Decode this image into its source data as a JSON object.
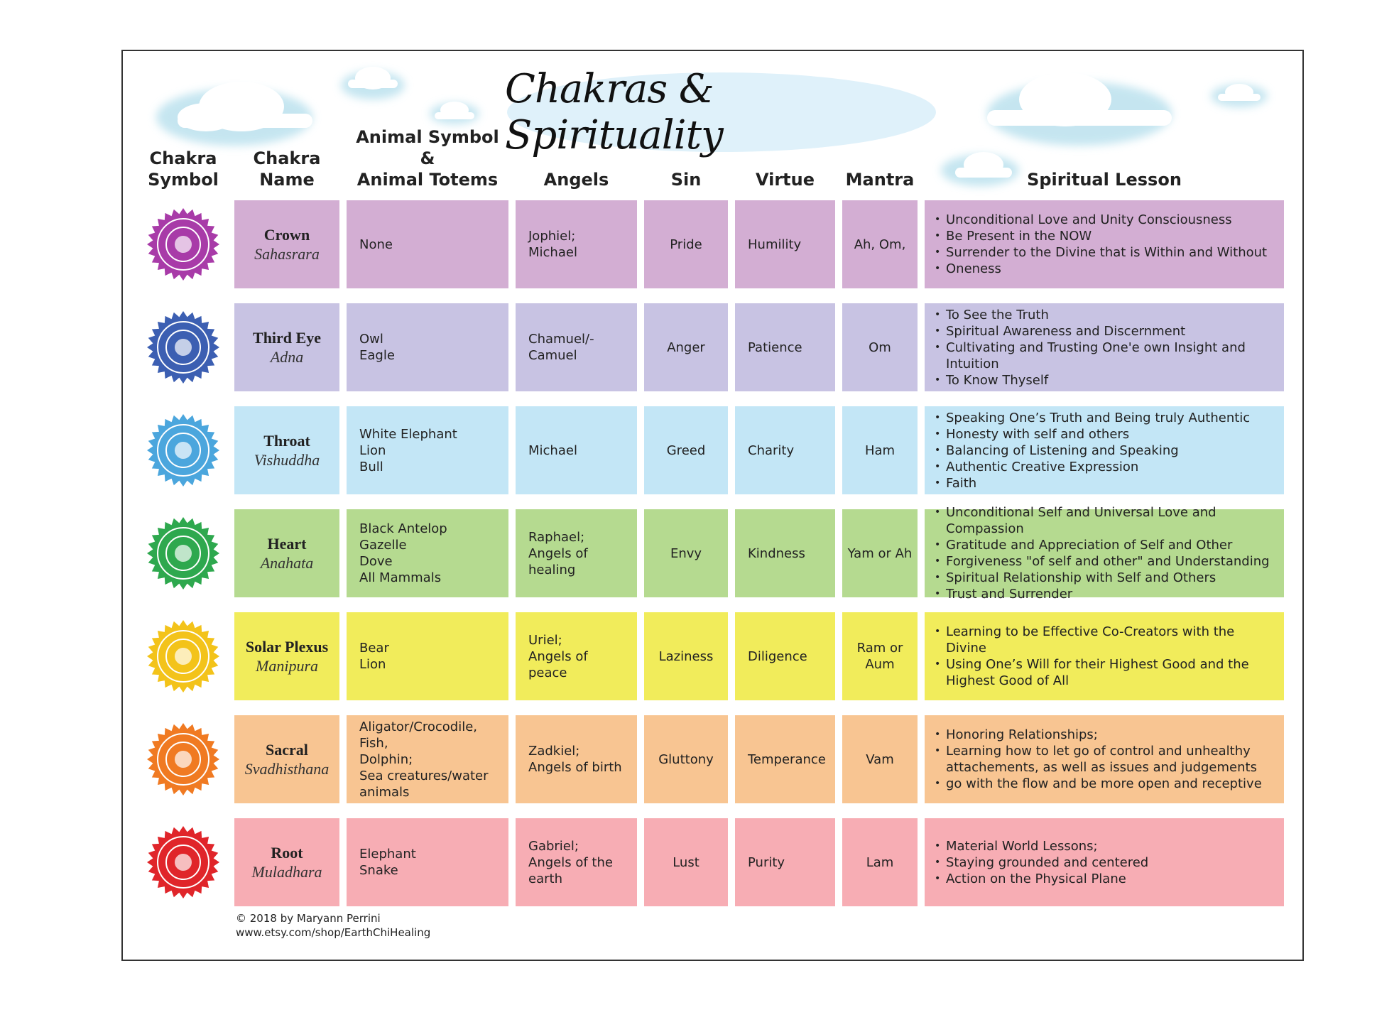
{
  "header": {
    "title": "Chakras & Spirituality"
  },
  "table": {
    "columns": [
      [
        "Chakra",
        "Symbol"
      ],
      [
        "Chakra",
        "Name"
      ],
      [
        "Animal Symbol &",
        "Animal Totems"
      ],
      [
        "Angels"
      ],
      [
        "Sin"
      ],
      [
        "Virtue"
      ],
      [
        "Mantra"
      ],
      [
        "Spiritual Lesson"
      ]
    ],
    "rows": [
      {
        "name": "Crown",
        "sanskrit": "Sahasrara",
        "animals": [
          "None"
        ],
        "angels": [
          "Jophiel;",
          "Michael"
        ],
        "sin": "Pride",
        "virtue": "Humility",
        "mantra": [
          "Ah, Om,"
        ],
        "lessons": [
          "Unconditional Love and Unity Consciousness",
          "Be Present in the NOW",
          "Surrender to the Divine that is Within and Without",
          "Oneness"
        ]
      },
      {
        "name": "Third Eye",
        "sanskrit": "Adna",
        "animals": [
          "Owl",
          "Eagle"
        ],
        "angels": [
          "Chamuel/-",
          "Camuel"
        ],
        "sin": "Anger",
        "virtue": "Patience",
        "mantra": [
          "Om"
        ],
        "lessons": [
          "To See the Truth",
          "Spiritual Awareness and Discernment",
          "Cultivating and Trusting One'e own Insight and Intuition",
          "To Know Thyself"
        ]
      },
      {
        "name": "Throat",
        "sanskrit": "Vishuddha",
        "animals": [
          "White Elephant",
          "Lion",
          "Bull"
        ],
        "angels": [
          "Michael"
        ],
        "sin": "Greed",
        "virtue": "Charity",
        "mantra": [
          "Ham"
        ],
        "lessons": [
          "Speaking One’s Truth and Being truly Authentic",
          "Honesty with self and others",
          "Balancing of Listening and Speaking",
          "Authentic Creative Expression",
          "Faith"
        ]
      },
      {
        "name": "Heart",
        "sanskrit": "Anahata",
        "animals": [
          "Black Antelop",
          "Gazelle",
          "Dove",
          "All Mammals"
        ],
        "angels": [
          "Raphael;",
          "Angels of healing"
        ],
        "sin": "Envy",
        "virtue": "Kindness",
        "mantra": [
          "Yam or Ah"
        ],
        "lessons": [
          "Unconditional Self and Universal Love and Compassion",
          "Gratitude and Appreciation of Self and Other",
          "Forgiveness \"of self and other\" and Understanding",
          "Spiritual Relationship with Self and Others",
          "Trust and Surrender"
        ]
      },
      {
        "name": "Solar Plexus",
        "sanskrit": "Manipura",
        "animals": [
          "Bear",
          "Lion"
        ],
        "angels": [
          "Uriel;",
          "Angels of peace"
        ],
        "sin": "Laziness",
        "virtue": "Diligence",
        "mantra": [
          "Ram or",
          "Aum"
        ],
        "lessons": [
          "Learning to be Effective Co-Creators with the Divine",
          "Using One’s Will for their Highest Good and the Highest Good of All"
        ]
      },
      {
        "name": "Sacral",
        "sanskrit": "Svadhisthana",
        "animals": [
          "Aligator/Crocodile,",
          "Fish,",
          "Dolphin;",
          "Sea creatures/water animals"
        ],
        "angels": [
          "Zadkiel;",
          "Angels of birth"
        ],
        "sin": "Gluttony",
        "virtue": "Temperance",
        "mantra": [
          "Vam"
        ],
        "lessons": [
          "Honoring Relationships;",
          "Learning how to let go of control and unhealthy attachements, as well as issues and judgements",
          "go with the flow and be more open and receptive"
        ]
      },
      {
        "name": "Root",
        "sanskrit": "Muladhara",
        "animals": [
          "Elephant",
          "Snake"
        ],
        "angels": [
          "Gabriel;",
          "Angels of the earth"
        ],
        "sin": "Lust",
        "virtue": "Purity",
        "mantra": [
          "Lam"
        ],
        "lessons": [
          "Material World Lessons;",
          "Staying grounded and centered",
          "Action on the Physical Plane"
        ]
      }
    ]
  },
  "footer": {
    "copyright": "© 2018 by Maryann Perrini",
    "url": "www.etsy.com/shop/EarthChiHealing"
  }
}
